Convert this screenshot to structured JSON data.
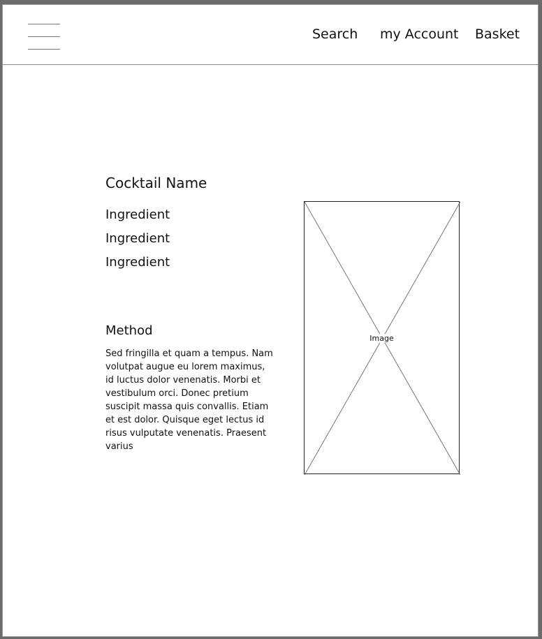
{
  "header": {
    "menu_icon": "hamburger-menu-icon",
    "nav": {
      "search": "Search",
      "account": "my Account",
      "basket": "Basket"
    }
  },
  "recipe": {
    "name": "Cocktail Name",
    "ingredients": [
      "Ingredient",
      "Ingredient",
      "Ingredient"
    ],
    "method_title": "Method",
    "method_text": "Sed fringilla et quam a tempus. Nam volutpat augue eu lorem maximus, id luctus dolor venenatis. Morbi et vestibulum orci. Donec pretium suscipit massa quis convallis. Etiam et est dolor. Quisque eget lectus id risus vulputate venenatis. Praesent varius",
    "image_label": "Image"
  }
}
